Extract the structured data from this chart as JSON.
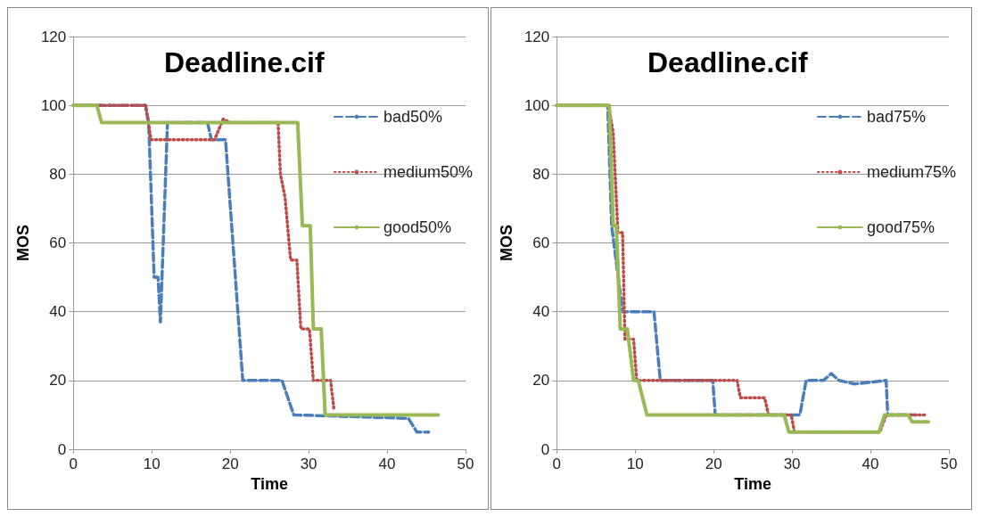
{
  "chart_data": [
    {
      "type": "line",
      "title": "Deadline.cif",
      "xlabel": "Time",
      "ylabel": "MOS",
      "xlim": [
        0,
        50
      ],
      "xticks": [
        0,
        10,
        20,
        30,
        40,
        50
      ],
      "ylim": [
        0,
        120
      ],
      "yticks": [
        0,
        20,
        40,
        60,
        80,
        100,
        120
      ],
      "grid": "y",
      "legend": "top right",
      "marker": "none",
      "series": [
        {
          "name": "bad50%",
          "color": "#4a7ebb",
          "line_style": "dashed",
          "x": [
            0,
            9.2,
            9.6,
            10.3,
            10.8,
            11.1,
            12,
            17.1,
            17.6,
            19.4,
            21.6,
            26.6,
            28.1,
            42.7,
            43.8,
            45.3
          ],
          "values": [
            100,
            100,
            95,
            50,
            50,
            37,
            95,
            95,
            90,
            90,
            20,
            20,
            10,
            9,
            5,
            5
          ]
        },
        {
          "name": "medium50%",
          "color": "#be4b48",
          "line_style": "dotted",
          "x": [
            0,
            9.2,
            9.9,
            18,
            19.1,
            20,
            26.1,
            26.4,
            27,
            27.7,
            28.5,
            29,
            30.1,
            30.6,
            32.8,
            33.2
          ],
          "values": [
            100,
            100,
            90,
            90,
            96,
            95,
            95,
            80,
            73,
            55,
            55,
            35,
            35,
            20,
            20,
            12
          ]
        },
        {
          "name": "good50%",
          "color": "#98b954",
          "line_style": "solid",
          "x": [
            0,
            3,
            3.6,
            28.6,
            29.2,
            30.2,
            30.6,
            31.6,
            32.1,
            46.5
          ],
          "values": [
            100,
            100,
            95,
            95,
            65,
            65,
            35,
            35,
            10,
            10
          ]
        }
      ]
    },
    {
      "type": "line",
      "title": "Deadline.cif",
      "xlabel": "Time",
      "ylabel": "MOS",
      "xlim": [
        0,
        50
      ],
      "xticks": [
        0,
        10,
        20,
        30,
        40,
        50
      ],
      "ylim": [
        0,
        120
      ],
      "yticks": [
        0,
        20,
        40,
        60,
        80,
        100,
        120
      ],
      "grid": "y",
      "legend": "top right",
      "marker": "none",
      "series": [
        {
          "name": "bad75%",
          "color": "#4a7ebb",
          "line_style": "dashed",
          "x": [
            0,
            6.5,
            7,
            8.4,
            12.4,
            13.2,
            19.9,
            20.2,
            31,
            31.8,
            34,
            35,
            36,
            38,
            42,
            42.2,
            45.8
          ],
          "values": [
            100,
            100,
            65,
            40,
            40,
            20,
            20,
            10,
            10,
            20,
            20,
            22,
            20,
            19,
            20,
            10,
            10
          ]
        },
        {
          "name": "medium75%",
          "color": "#be4b48",
          "line_style": "dotted",
          "x": [
            0,
            6.6,
            7.2,
            7.8,
            8.4,
            8.7,
            9.8,
            10.2,
            23,
            23.4,
            26.5,
            27,
            29.9,
            30.3,
            41.2,
            42,
            46.9
          ],
          "values": [
            100,
            100,
            92,
            63,
            63,
            32,
            32,
            20,
            20,
            15,
            15,
            10,
            10,
            5,
            5,
            10,
            10
          ]
        },
        {
          "name": "good75%",
          "color": "#98b954",
          "line_style": "solid",
          "x": [
            0,
            6.7,
            7.2,
            7.6,
            8.1,
            9,
            9.8,
            10.4,
            11.5,
            29,
            29.6,
            41.1,
            41.8,
            44.8,
            45.3,
            47.4
          ],
          "values": [
            100,
            100,
            65,
            65,
            35,
            35,
            20,
            20,
            10,
            10,
            5,
            5,
            10,
            10,
            8,
            8
          ]
        }
      ]
    }
  ]
}
